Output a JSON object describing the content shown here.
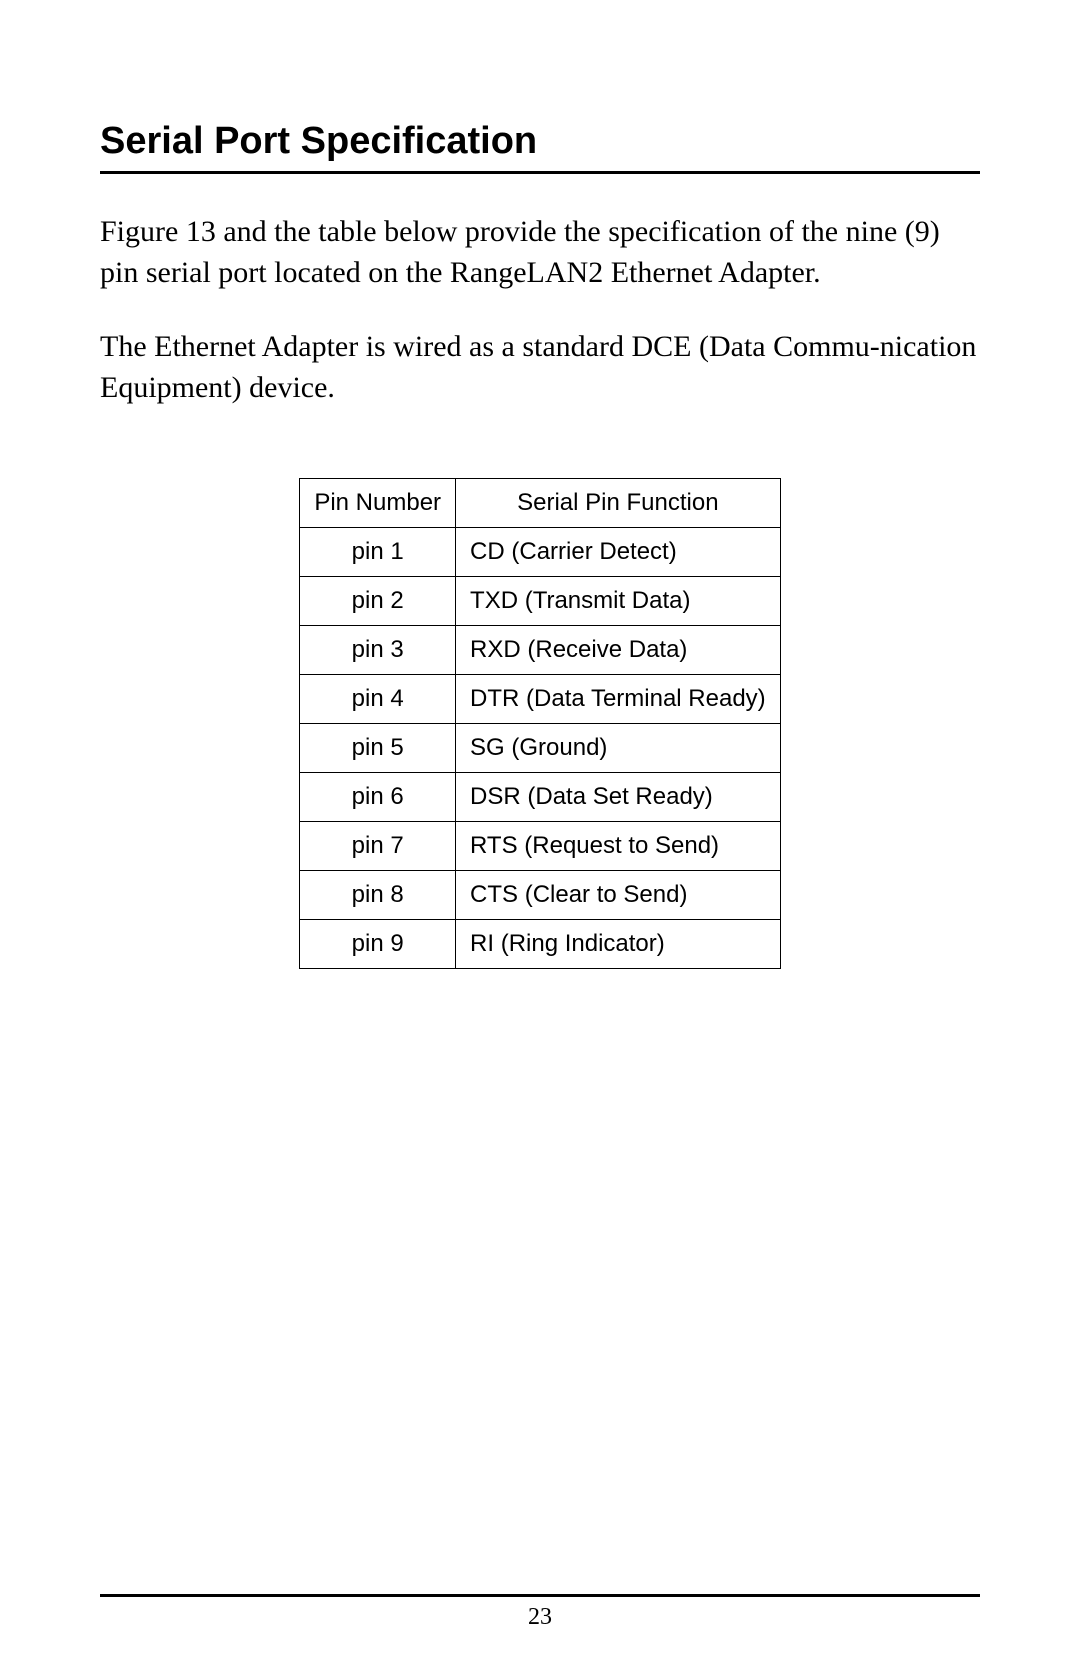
{
  "heading": "Serial Port Specification",
  "para1": "Figure 13 and the table below provide the specification of the nine (9) pin serial port located on the RangeLAN2 Ethernet Adapter.",
  "para2": "The Ethernet Adapter is wired as a standard DCE (Data Commu-nication Equipment) device.",
  "table": {
    "header": {
      "col1": "Pin Number",
      "col2": "Serial Pin Function"
    },
    "rows": [
      {
        "pin": "pin 1",
        "func": "CD (Carrier Detect)"
      },
      {
        "pin": "pin 2",
        "func": "TXD (Transmit Data)"
      },
      {
        "pin": "pin 3",
        "func": "RXD (Receive Data)"
      },
      {
        "pin": "pin 4",
        "func": "DTR (Data Terminal Ready)"
      },
      {
        "pin": "pin 5",
        "func": "SG (Ground)"
      },
      {
        "pin": "pin 6",
        "func": "DSR (Data Set Ready)"
      },
      {
        "pin": "pin 7",
        "func": "RTS (Request to Send)"
      },
      {
        "pin": "pin 8",
        "func": "CTS (Clear to Send)"
      },
      {
        "pin": "pin 9",
        "func": "RI (Ring Indicator)"
      }
    ]
  },
  "pageNumber": "23"
}
